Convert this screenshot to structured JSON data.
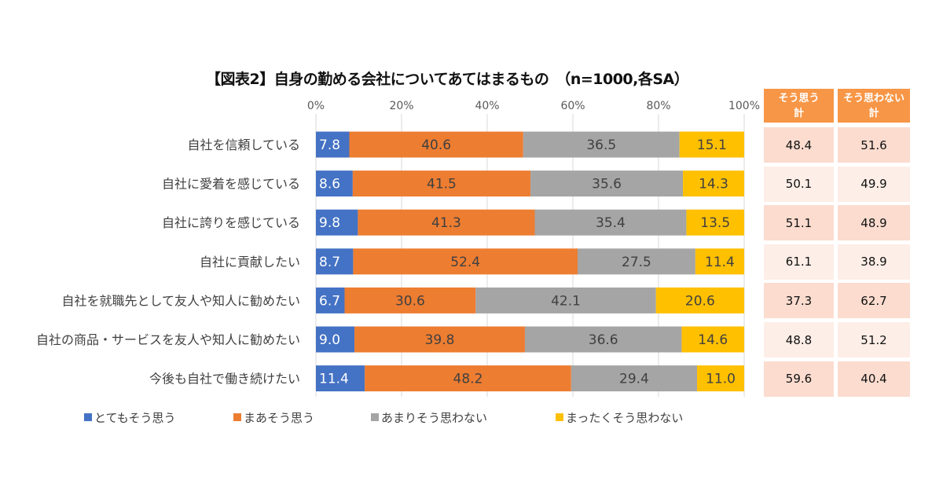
{
  "chart_data": {
    "type": "bar",
    "stacked": true,
    "orientation": "horizontal",
    "title": "【図表2】自身の勤める会社についてあてはまるもの　（n=1000,各SA）",
    "xlim": [
      0,
      100
    ],
    "xticks": [
      "0%",
      "20%",
      "40%",
      "60%",
      "80%",
      "100%"
    ],
    "categories": [
      "自社を信頼している",
      "自社に愛着を感じている",
      "自社に誇りを感じている",
      "自社に貢献したい",
      "自社を就職先として友人や知人に勧めたい",
      "自社の商品・サービスを友人や知人に勧めたい",
      "今後も自社で働き続けたい"
    ],
    "series": [
      {
        "name": "とてもそう思う",
        "color": "#4472c4",
        "values": [
          7.8,
          8.6,
          9.8,
          8.7,
          6.7,
          9.0,
          11.4
        ]
      },
      {
        "name": "まあそう思う",
        "color": "#ed7d31",
        "values": [
          40.6,
          41.5,
          41.3,
          52.4,
          30.6,
          39.8,
          48.2
        ]
      },
      {
        "name": "あまりそう思わない",
        "color": "#a5a5a5",
        "values": [
          36.5,
          35.6,
          35.4,
          27.5,
          42.1,
          36.6,
          29.4
        ]
      },
      {
        "name": "まったくそう思わない",
        "color": "#ffc000",
        "values": [
          15.1,
          14.3,
          13.5,
          11.4,
          20.6,
          14.6,
          11.0
        ]
      }
    ],
    "legend": "bottom"
  },
  "table": {
    "headers": [
      "そう思う\n計",
      "そう思わない\n計"
    ],
    "rows": [
      [
        "48.4",
        "51.6"
      ],
      [
        "50.1",
        "49.9"
      ],
      [
        "51.1",
        "48.9"
      ],
      [
        "61.1",
        "38.9"
      ],
      [
        "37.3",
        "62.7"
      ],
      [
        "48.8",
        "51.2"
      ],
      [
        "59.6",
        "40.4"
      ]
    ],
    "header_color": "#f79646"
  }
}
